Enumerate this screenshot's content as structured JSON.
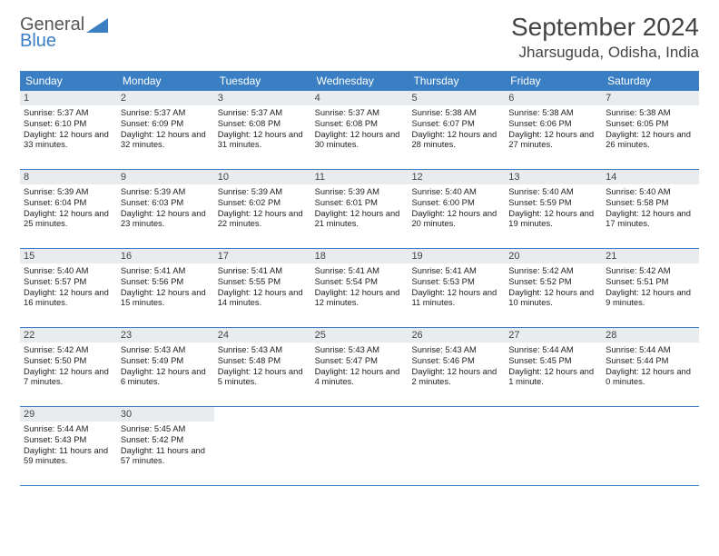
{
  "brand": {
    "line1": "General",
    "line2": "Blue"
  },
  "title": "September 2024",
  "location": "Jharsuguda, Odisha, India",
  "colors": {
    "accent": "#3a7fc4",
    "dayhead_bg": "#3a7fc4",
    "daynum_bg": "#e9ecef",
    "text": "#222222",
    "title_color": "#444444"
  },
  "day_labels": [
    "Sunday",
    "Monday",
    "Tuesday",
    "Wednesday",
    "Thursday",
    "Friday",
    "Saturday"
  ],
  "weeks": [
    [
      {
        "n": "1",
        "sr": "5:37 AM",
        "ss": "6:10 PM",
        "dl": "12 hours and 33 minutes."
      },
      {
        "n": "2",
        "sr": "5:37 AM",
        "ss": "6:09 PM",
        "dl": "12 hours and 32 minutes."
      },
      {
        "n": "3",
        "sr": "5:37 AM",
        "ss": "6:08 PM",
        "dl": "12 hours and 31 minutes."
      },
      {
        "n": "4",
        "sr": "5:37 AM",
        "ss": "6:08 PM",
        "dl": "12 hours and 30 minutes."
      },
      {
        "n": "5",
        "sr": "5:38 AM",
        "ss": "6:07 PM",
        "dl": "12 hours and 28 minutes."
      },
      {
        "n": "6",
        "sr": "5:38 AM",
        "ss": "6:06 PM",
        "dl": "12 hours and 27 minutes."
      },
      {
        "n": "7",
        "sr": "5:38 AM",
        "ss": "6:05 PM",
        "dl": "12 hours and 26 minutes."
      }
    ],
    [
      {
        "n": "8",
        "sr": "5:39 AM",
        "ss": "6:04 PM",
        "dl": "12 hours and 25 minutes."
      },
      {
        "n": "9",
        "sr": "5:39 AM",
        "ss": "6:03 PM",
        "dl": "12 hours and 23 minutes."
      },
      {
        "n": "10",
        "sr": "5:39 AM",
        "ss": "6:02 PM",
        "dl": "12 hours and 22 minutes."
      },
      {
        "n": "11",
        "sr": "5:39 AM",
        "ss": "6:01 PM",
        "dl": "12 hours and 21 minutes."
      },
      {
        "n": "12",
        "sr": "5:40 AM",
        "ss": "6:00 PM",
        "dl": "12 hours and 20 minutes."
      },
      {
        "n": "13",
        "sr": "5:40 AM",
        "ss": "5:59 PM",
        "dl": "12 hours and 19 minutes."
      },
      {
        "n": "14",
        "sr": "5:40 AM",
        "ss": "5:58 PM",
        "dl": "12 hours and 17 minutes."
      }
    ],
    [
      {
        "n": "15",
        "sr": "5:40 AM",
        "ss": "5:57 PM",
        "dl": "12 hours and 16 minutes."
      },
      {
        "n": "16",
        "sr": "5:41 AM",
        "ss": "5:56 PM",
        "dl": "12 hours and 15 minutes."
      },
      {
        "n": "17",
        "sr": "5:41 AM",
        "ss": "5:55 PM",
        "dl": "12 hours and 14 minutes."
      },
      {
        "n": "18",
        "sr": "5:41 AM",
        "ss": "5:54 PM",
        "dl": "12 hours and 12 minutes."
      },
      {
        "n": "19",
        "sr": "5:41 AM",
        "ss": "5:53 PM",
        "dl": "12 hours and 11 minutes."
      },
      {
        "n": "20",
        "sr": "5:42 AM",
        "ss": "5:52 PM",
        "dl": "12 hours and 10 minutes."
      },
      {
        "n": "21",
        "sr": "5:42 AM",
        "ss": "5:51 PM",
        "dl": "12 hours and 9 minutes."
      }
    ],
    [
      {
        "n": "22",
        "sr": "5:42 AM",
        "ss": "5:50 PM",
        "dl": "12 hours and 7 minutes."
      },
      {
        "n": "23",
        "sr": "5:43 AM",
        "ss": "5:49 PM",
        "dl": "12 hours and 6 minutes."
      },
      {
        "n": "24",
        "sr": "5:43 AM",
        "ss": "5:48 PM",
        "dl": "12 hours and 5 minutes."
      },
      {
        "n": "25",
        "sr": "5:43 AM",
        "ss": "5:47 PM",
        "dl": "12 hours and 4 minutes."
      },
      {
        "n": "26",
        "sr": "5:43 AM",
        "ss": "5:46 PM",
        "dl": "12 hours and 2 minutes."
      },
      {
        "n": "27",
        "sr": "5:44 AM",
        "ss": "5:45 PM",
        "dl": "12 hours and 1 minute."
      },
      {
        "n": "28",
        "sr": "5:44 AM",
        "ss": "5:44 PM",
        "dl": "12 hours and 0 minutes."
      }
    ],
    [
      {
        "n": "29",
        "sr": "5:44 AM",
        "ss": "5:43 PM",
        "dl": "11 hours and 59 minutes."
      },
      {
        "n": "30",
        "sr": "5:45 AM",
        "ss": "5:42 PM",
        "dl": "11 hours and 57 minutes."
      },
      null,
      null,
      null,
      null,
      null
    ]
  ],
  "labels": {
    "sunrise": "Sunrise:",
    "sunset": "Sunset:",
    "daylight": "Daylight:"
  }
}
